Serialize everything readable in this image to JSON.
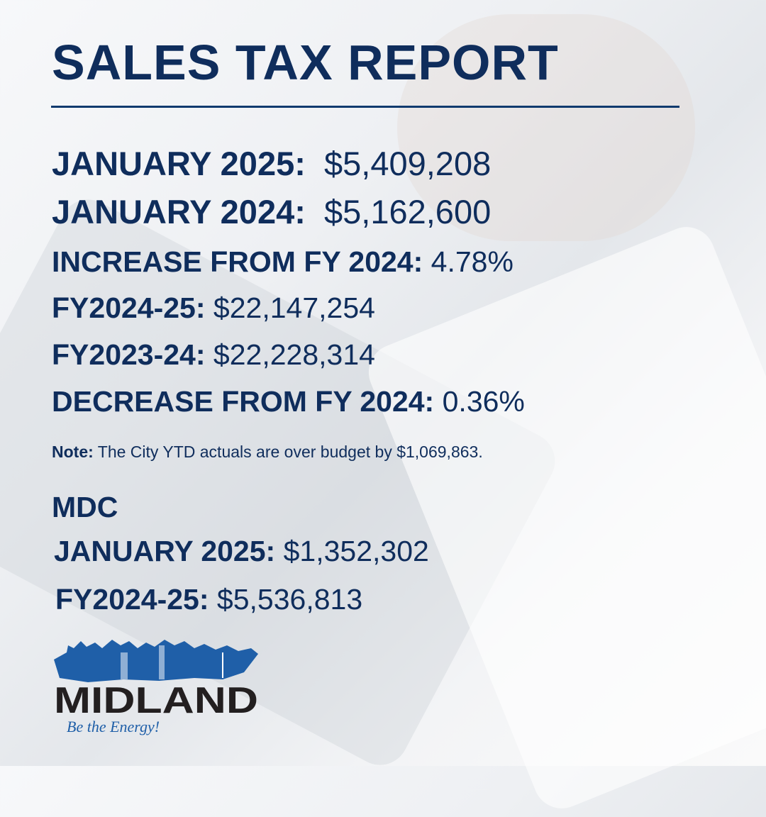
{
  "title": "SALES TAX REPORT",
  "rows": [
    {
      "label": "JANUARY 2025:",
      "value": "$5,409,208"
    },
    {
      "label": "JANUARY 2024:",
      "value": "$5,162,600"
    },
    {
      "label": "INCREASE FROM FY 2024:",
      "value": "4.78%"
    },
    {
      "label": "FY2024-25:",
      "value": "$22,147,254"
    },
    {
      "label": "FY2023-24:",
      "value": "$22,228,314"
    },
    {
      "label": "DECREASE FROM FY 2024:",
      "value": "0.36%"
    }
  ],
  "note": {
    "label": "Note:",
    "text": "The City YTD actuals are over budget by $1,069,863."
  },
  "mdc": {
    "heading": "MDC",
    "rows": [
      {
        "label": "JANUARY 2025:",
        "value": "$1,352,302"
      },
      {
        "label": "FY2024-25:",
        "value": "$5,536,813"
      }
    ]
  },
  "logo": {
    "name": "MIDLAND",
    "tagline": "Be the Energy!"
  },
  "colors": {
    "text": "#0f2d5c",
    "logo_blue": "#1f5fa8",
    "logo_black": "#231f20"
  }
}
